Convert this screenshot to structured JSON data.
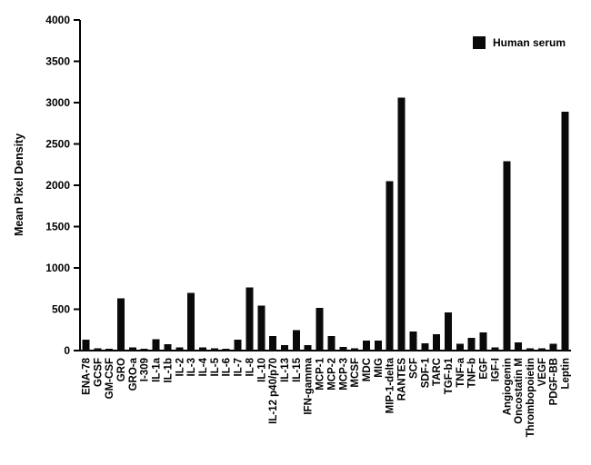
{
  "chart_data": {
    "type": "bar",
    "title": "",
    "xlabel": "",
    "ylabel": "Mean Pixel Density",
    "ylim": [
      0,
      4000
    ],
    "ytick_step": 500,
    "grid": false,
    "bar_color": "#0a0a0a",
    "legend": {
      "label": "Human serum",
      "position": "top-right",
      "swatch_color": "#0a0a0a"
    },
    "categories": [
      "ENA-78",
      "GCSF",
      "GM-CSF",
      "GRO",
      "GRO-a",
      "I-309",
      "IL-1a",
      "IL-1b",
      "IL-2",
      "IL-3",
      "IL-4",
      "IL-5",
      "IL-6",
      "IL-7",
      "IL-8",
      "IL-10",
      "IL-12 p40/p70",
      "IL-13",
      "IL-15",
      "IFN-gamma",
      "MCP-1",
      "MCP-2",
      "MCP-3",
      "MCSF",
      "MDC",
      "MIG",
      "MIP-1-delta",
      "RANTES",
      "SCF",
      "SDF-1",
      "TARC",
      "TGF-b1",
      "TNF-a",
      "TNF-b",
      "EGF",
      "IGF-I",
      "Angiogenin",
      "Oncostatin M",
      "Thrombopoietin",
      "VEGF",
      "PDGF-BB",
      "Leptin"
    ],
    "values": [
      130,
      30,
      20,
      630,
      40,
      20,
      140,
      75,
      40,
      700,
      40,
      30,
      20,
      130,
      765,
      545,
      175,
      65,
      250,
      65,
      515,
      175,
      45,
      30,
      120,
      120,
      2050,
      3060,
      230,
      90,
      200,
      460,
      85,
      155,
      220,
      40,
      2290,
      100,
      30,
      25,
      80,
      2890
    ]
  }
}
